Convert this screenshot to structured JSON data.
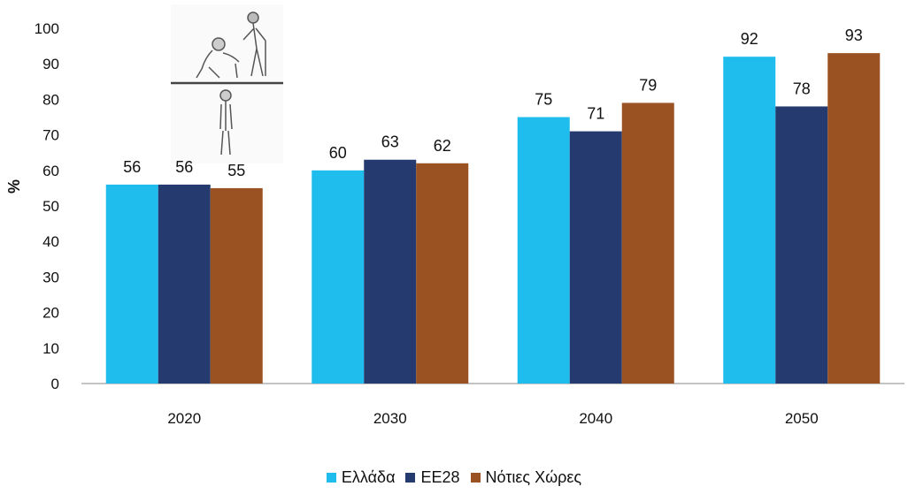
{
  "chart_data": {
    "type": "bar",
    "categories": [
      "2020",
      "2030",
      "2040",
      "2050"
    ],
    "series": [
      {
        "name": "Ελλάδα",
        "color": "#1fbdee",
        "values": [
          56,
          60,
          75,
          92
        ]
      },
      {
        "name": "ΕΕ28",
        "color": "#253a6e",
        "values": [
          56,
          63,
          71,
          78
        ]
      },
      {
        "name": "Νότιες Χώρες",
        "color": "#9b5222",
        "values": [
          55,
          62,
          79,
          93
        ]
      }
    ],
    "ylabel": "%",
    "ylim": [
      0,
      100
    ],
    "yticks": [
      0,
      10,
      20,
      30,
      40,
      50,
      60,
      70,
      80,
      90,
      100
    ],
    "grid": false,
    "legend_position": "bottom",
    "data_labels": true
  }
}
